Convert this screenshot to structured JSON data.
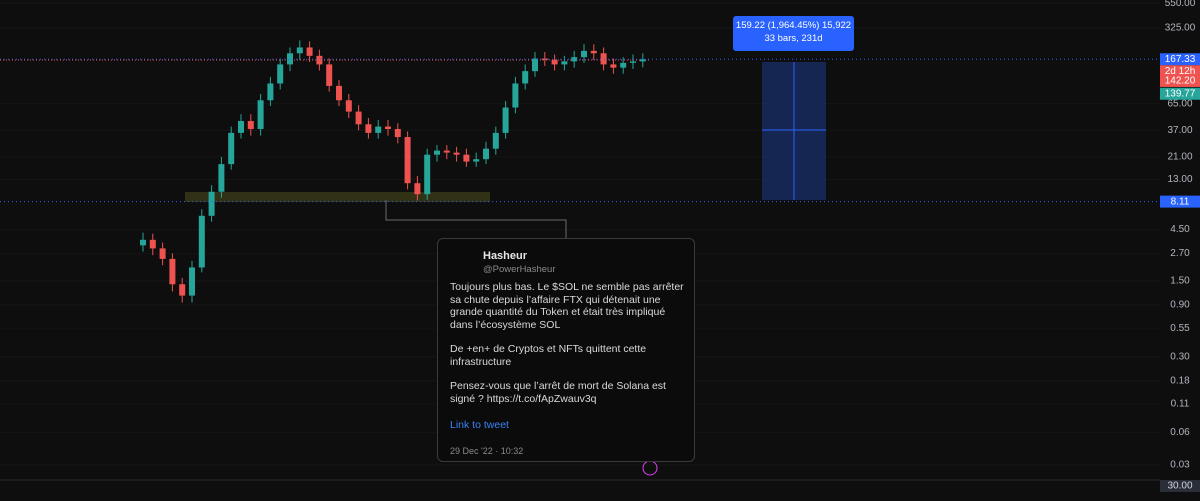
{
  "chart_data": {
    "type": "candlestick",
    "log_scale": true,
    "colors": {
      "up": "#26a69a",
      "down": "#ef5350"
    },
    "open": [
      3.2,
      3.6,
      3.0,
      2.4,
      1.4,
      1.1,
      2.0,
      6,
      10,
      18,
      35,
      45,
      38,
      70,
      100,
      150,
      190,
      215,
      180,
      150,
      95,
      70,
      55,
      42,
      35,
      40,
      38,
      32,
      12,
      9.5,
      22,
      24,
      23,
      22,
      19,
      20,
      25,
      35,
      60,
      100,
      130,
      170,
      165,
      150,
      160,
      175,
      200,
      190,
      150,
      140,
      155,
      160
    ],
    "high": [
      4.2,
      4.1,
      3.4,
      2.7,
      1.6,
      2.3,
      6.9,
      11.5,
      21,
      40,
      52,
      52,
      80,
      115,
      170,
      215,
      250,
      245,
      205,
      170,
      108,
      80,
      63,
      48,
      46,
      46,
      43,
      36,
      14,
      25,
      27,
      27,
      26,
      25,
      23,
      29,
      40,
      69,
      115,
      150,
      195,
      195,
      185,
      180,
      200,
      230,
      230,
      215,
      170,
      175,
      185,
      190
    ],
    "low": [
      2.8,
      2.6,
      2.1,
      1.2,
      0.95,
      0.95,
      1.8,
      5.3,
      8.8,
      16,
      31,
      33,
      33,
      62,
      88,
      130,
      165,
      158,
      132,
      84,
      62,
      48,
      37,
      31,
      31,
      33,
      28,
      10.5,
      8.3,
      8.4,
      19,
      20,
      19,
      17,
      17,
      18,
      22,
      31,
      53,
      88,
      115,
      145,
      132,
      132,
      140,
      155,
      165,
      132,
      123,
      123,
      136,
      141
    ],
    "close": [
      3.6,
      3.0,
      2.4,
      1.4,
      1.1,
      2.0,
      6,
      10,
      18,
      35,
      45,
      38,
      70,
      100,
      150,
      190,
      215,
      180,
      150,
      95,
      70,
      55,
      42,
      35,
      40,
      38,
      32,
      12,
      9.5,
      22,
      24,
      23,
      22,
      19,
      20,
      25,
      35,
      60,
      100,
      130,
      170,
      165,
      150,
      160,
      175,
      200,
      190,
      150,
      140,
      155,
      160,
      167.33
    ],
    "ylim": [
      0.0218,
      590
    ],
    "yticks": [
      {
        "value": 550,
        "label": "550.00"
      },
      {
        "value": 325,
        "label": "325.00"
      },
      {
        "value": 65,
        "label": "65.00"
      },
      {
        "value": 37,
        "label": "37.00"
      },
      {
        "value": 21,
        "label": "21.00"
      },
      {
        "value": 13,
        "label": "13.00"
      },
      {
        "value": 4.5,
        "label": "4.50"
      },
      {
        "value": 2.7,
        "label": "2.70"
      },
      {
        "value": 1.5,
        "label": "1.50"
      },
      {
        "value": 0.9,
        "label": "0.90"
      },
      {
        "value": 0.55,
        "label": "0.55"
      },
      {
        "value": 0.3,
        "label": "0.30"
      },
      {
        "value": 0.18,
        "label": "0.18"
      },
      {
        "value": 0.11,
        "label": "0.11"
      },
      {
        "value": 0.06,
        "label": "0.06"
      },
      {
        "value": 0.03,
        "label": "0.03"
      }
    ],
    "price_labels": [
      {
        "value": 167.33,
        "color": "#2962ff"
      },
      {
        "value": 142.2,
        "label": "142.20",
        "color": "#ef5350"
      },
      {
        "value": 139.77,
        "color": "#26a69a"
      },
      {
        "value": 8.11,
        "color": "#2962ff"
      }
    ],
    "countdown": "2d 12h",
    "volume_label": "30.00",
    "measure": {
      "line1": "159.22 (1,964.45%) 15,922",
      "line2": "33 bars, 231d"
    }
  },
  "tweet": {
    "name": "Hasheur",
    "handle": "@PowerHasheur",
    "paragraphs": [
      "Toujours plus bas. Le $SOL ne semble pas arrêter sa chute depuis l’affaire FTX qui détenait une grande quantité du Token et était très impliqué dans l’écosystème SOL",
      "De +en+ de Cryptos et NFTs quittent cette infrastructure",
      "Pensez-vous que l’arrêt de mort de Solana est signé ? https://t.co/fApZwauv3q"
    ],
    "link": "Link to tweet",
    "date": "29 Dec '22 · 10:32"
  }
}
